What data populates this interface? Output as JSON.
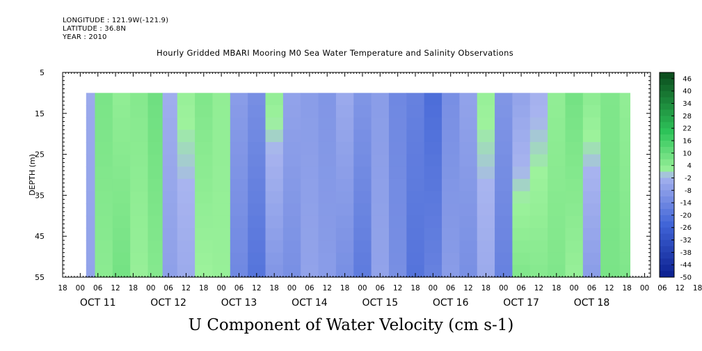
{
  "header": {
    "longitude": "LONGITUDE : 121.9W(-121.9)",
    "latitude": "LATITUDE : 36.8N",
    "year": "YEAR : 2010"
  },
  "chart_data": {
    "type": "heatmap",
    "title": "Hourly Gridded MBARI Mooring M0 Sea Water Temperature and Salinity Observations",
    "variable_label": "U Component of Water Velocity (cm s-1)",
    "ylabel": "DEPTH (m)",
    "ylim": [
      5,
      55
    ],
    "y_inverted": true,
    "y_ticks": [
      5,
      15,
      25,
      35,
      45,
      55
    ],
    "data_depth_range": [
      10,
      55
    ],
    "x_hour_ticks": [
      "18",
      "00",
      "06",
      "12",
      "18",
      "00",
      "06",
      "12",
      "18",
      "00",
      "06",
      "12",
      "18",
      "00",
      "06",
      "12",
      "18",
      "00",
      "06",
      "12",
      "18",
      "00",
      "06",
      "12",
      "18",
      "00",
      "06",
      "12",
      "18",
      "00",
      "06",
      "12",
      "18",
      "00",
      "06",
      "12",
      "18"
    ],
    "x_date_labels": [
      "OCT 11",
      "OCT 12",
      "OCT 13",
      "OCT 14",
      "OCT 15",
      "OCT 16",
      "OCT 17",
      "OCT 18"
    ],
    "data_time_range_hours": [
      2,
      187
    ],
    "colorbar": {
      "labels": [
        46,
        40,
        34,
        28,
        22,
        16,
        10,
        4,
        -2,
        -8,
        -14,
        -20,
        -26,
        -32,
        -38,
        -44,
        -50
      ],
      "range": [
        -50,
        49
      ],
      "colors": {
        "negative_strong": "#0b1f8f",
        "negative_mid": "#3f63d6",
        "negative_weak": "#a8b4ef",
        "positive_weak": "#9df29c",
        "positive_mid": "#2ec55a",
        "positive_strong": "#0b4a1c"
      }
    },
    "column_profiles": [
      {
        "hour": 2,
        "surface": -4,
        "bottom": -6
      },
      {
        "hour": 8,
        "surface": 7,
        "bottom": 4
      },
      {
        "hour": 14,
        "surface": 3,
        "bottom": 8
      },
      {
        "hour": 20,
        "surface": 5,
        "bottom": 2
      },
      {
        "hour": 26,
        "surface": 9,
        "bottom": 5
      },
      {
        "hour": 30,
        "surface": -3,
        "bottom": -7
      },
      {
        "hour": 36,
        "surface": 2,
        "bottom": -4
      },
      {
        "hour": 42,
        "surface": 6,
        "bottom": 1
      },
      {
        "hour": 48,
        "surface": 3,
        "bottom": 2
      },
      {
        "hour": 54,
        "surface": -8,
        "bottom": -14
      },
      {
        "hour": 60,
        "surface": -12,
        "bottom": -20
      },
      {
        "hour": 66,
        "surface": 3,
        "bottom": -10
      },
      {
        "hour": 72,
        "surface": -6,
        "bottom": -12
      },
      {
        "hour": 78,
        "surface": -8,
        "bottom": -6
      },
      {
        "hour": 84,
        "surface": -10,
        "bottom": -8
      },
      {
        "hour": 90,
        "surface": -4,
        "bottom": -12
      },
      {
        "hour": 96,
        "surface": -10,
        "bottom": -18
      },
      {
        "hour": 102,
        "surface": -8,
        "bottom": -6
      },
      {
        "hour": 108,
        "surface": -14,
        "bottom": -12
      },
      {
        "hour": 114,
        "surface": -16,
        "bottom": -20
      },
      {
        "hour": 120,
        "surface": -22,
        "bottom": -16
      },
      {
        "hour": 126,
        "surface": -12,
        "bottom": -8
      },
      {
        "hour": 132,
        "surface": -6,
        "bottom": -12
      },
      {
        "hour": 138,
        "surface": 2,
        "bottom": -4
      },
      {
        "hour": 144,
        "surface": -10,
        "bottom": -16
      },
      {
        "hour": 150,
        "surface": -6,
        "bottom": 6
      },
      {
        "hour": 156,
        "surface": -2,
        "bottom": 5
      },
      {
        "hour": 162,
        "surface": 3,
        "bottom": 6
      },
      {
        "hour": 168,
        "surface": 8,
        "bottom": 2
      },
      {
        "hour": 174,
        "surface": 4,
        "bottom": -8
      },
      {
        "hour": 180,
        "surface": 6,
        "bottom": 7
      },
      {
        "hour": 187,
        "surface": 3,
        "bottom": 6
      }
    ],
    "grid": false
  }
}
